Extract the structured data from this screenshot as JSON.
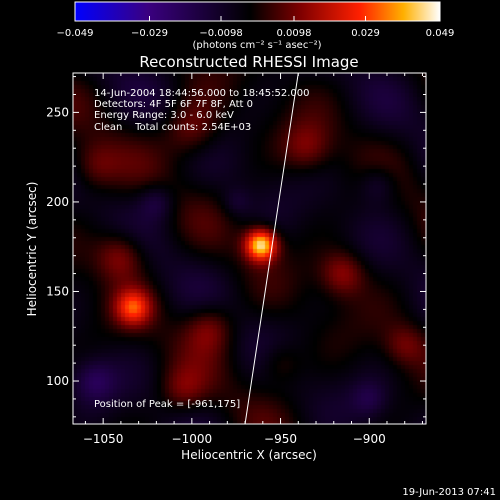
{
  "chart_data": {
    "type": "heatmap",
    "title": "Reconstructed RHESSI Image",
    "xlabel": "Heliocentric X (arcsec)",
    "ylabel": "Heliocentric Y (arcsec)",
    "xlim": [
      -1067,
      -868
    ],
    "ylim": [
      76,
      272
    ],
    "x_ticks": [
      -1050,
      -1000,
      -950,
      -900
    ],
    "y_ticks": [
      100,
      150,
      200,
      250
    ],
    "colorbar": {
      "min": -0.049,
      "max": 0.049,
      "ticks": [
        -0.049,
        -0.029,
        -0.0098,
        0.0098,
        0.029,
        0.049
      ],
      "tick_labels": [
        "−0.049",
        "−0.029",
        "−0.0098",
        "0.0098",
        "0.029",
        "0.049"
      ],
      "units_label": "(photons cm⁻² s⁻¹ asec⁻²)",
      "colormap": [
        "#0000ff",
        "#3a0080",
        "#000000",
        "#800000",
        "#ff2000",
        "#ffb000",
        "#ffffff"
      ]
    },
    "annotations": [
      "14-Jun-2004 18:44:56.000 to 18:45:52.000",
      "Detectors: 4F 5F 6F 7F 8F, Att 0",
      "Energy Range: 3.0 - 6.0 keV",
      "Clean    Total counts: 2.54E+03"
    ],
    "peak": {
      "x": -961,
      "y": 175,
      "label": "Position of Peak = [-961,175]"
    },
    "limb_line": {
      "points": [
        [
          -970,
          76
        ],
        [
          -940,
          272
        ]
      ]
    },
    "sources": [
      {
        "x": -961,
        "y": 176,
        "amplitude": 0.049,
        "width": 9
      },
      {
        "x": -1033,
        "y": 141,
        "amplitude": 0.028,
        "width": 10
      },
      {
        "x": -1040,
        "y": 170,
        "amplitude": 0.018,
        "width": 14
      },
      {
        "x": -990,
        "y": 130,
        "amplitude": 0.016,
        "width": 14
      },
      {
        "x": -915,
        "y": 160,
        "amplitude": 0.018,
        "width": 13
      },
      {
        "x": -1000,
        "y": 240,
        "amplitude": 0.016,
        "width": 16
      },
      {
        "x": -935,
        "y": 230,
        "amplitude": 0.014,
        "width": 14
      },
      {
        "x": -1055,
        "y": 220,
        "amplitude": 0.013,
        "width": 14
      },
      {
        "x": -880,
        "y": 120,
        "amplitude": 0.012,
        "width": 12
      },
      {
        "x": -1005,
        "y": 95,
        "amplitude": 0.012,
        "width": 13
      },
      {
        "x": -950,
        "y": 110,
        "amplitude": 0.011,
        "width": 12
      },
      {
        "x": -1020,
        "y": 200,
        "amplitude": -0.012,
        "width": 10
      },
      {
        "x": -1055,
        "y": 100,
        "amplitude": -0.014,
        "width": 12
      },
      {
        "x": -895,
        "y": 210,
        "amplitude": -0.012,
        "width": 11
      },
      {
        "x": -900,
        "y": 90,
        "amplitude": -0.01,
        "width": 10
      },
      {
        "x": -975,
        "y": 200,
        "amplitude": -0.008,
        "width": 8
      }
    ]
  },
  "footer": {
    "timestamp": "19-Jun-2013 07:41"
  }
}
